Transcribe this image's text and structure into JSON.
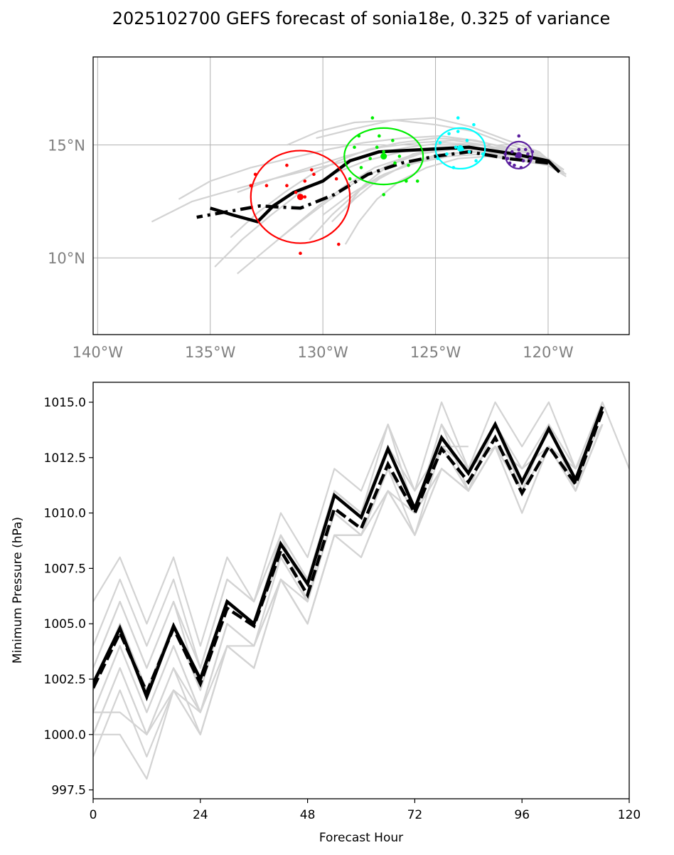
{
  "title": "2025102700 GEFS forecast of sonia18e, 0.325 of variance",
  "chart_data": [
    {
      "type": "scatter",
      "name": "track-map",
      "xlim": [
        -140.2,
        -116.4
      ],
      "ylim": [
        6.6,
        18.9
      ],
      "xticks": [
        -140,
        -135,
        -130,
        -125,
        -120
      ],
      "xtick_labels": [
        "140°W",
        "135°W",
        "130°W",
        "125°W",
        "120°W"
      ],
      "yticks": [
        10,
        15
      ],
      "ytick_labels": [
        "10°N",
        "15°N"
      ],
      "grid": true,
      "colors": {
        "member": "#d3d3d3",
        "mean": "#000000",
        "ellipse_24h": "#5b1f9e",
        "ellipse_48h": "#00ffff",
        "ellipse_72h": "#00ee00",
        "ellipse_96h": "#ff0000",
        "grid": "#b0b0b0"
      },
      "ensemble_members": [
        {
          "lon": [
            -119.3,
            -120.0,
            -121.4,
            -123.0,
            -124.6,
            -126.2,
            -127.8,
            -129.3,
            -131.0,
            -132.6,
            -134.4,
            -135.8,
            -137.6
          ],
          "lat": [
            13.9,
            14.4,
            14.6,
            15.0,
            15.1,
            14.9,
            14.6,
            14.2,
            13.8,
            13.4,
            12.9,
            12.5,
            11.6
          ]
        },
        {
          "lon": [
            -119.4,
            -120.2,
            -121.6,
            -123.2,
            -124.8,
            -126.5,
            -128.2,
            -129.8,
            -131.5,
            -133.2,
            -135.0,
            -136.4
          ],
          "lat": [
            13.8,
            14.5,
            14.8,
            15.2,
            15.4,
            15.3,
            15.1,
            14.8,
            14.4,
            14.0,
            13.4,
            12.6
          ]
        },
        {
          "lon": [
            -119.2,
            -120.1,
            -121.3,
            -122.8,
            -124.2,
            -125.8,
            -127.4,
            -129.0,
            -130.6,
            -132.2,
            -133.8
          ],
          "lat": [
            13.7,
            14.3,
            14.6,
            15.0,
            15.2,
            15.1,
            14.9,
            14.5,
            14.0,
            13.5,
            12.9
          ]
        },
        {
          "lon": [
            -119.5,
            -120.3,
            -121.7,
            -123.3,
            -125.0,
            -126.8,
            -128.6,
            -130.2,
            -131.6
          ],
          "lat": [
            13.9,
            14.6,
            15.0,
            15.6,
            15.9,
            16.1,
            16.0,
            15.6,
            15.0
          ]
        },
        {
          "lon": [
            -119.6,
            -120.4,
            -121.8,
            -123.4,
            -125.1,
            -126.9,
            -128.7,
            -130.3
          ],
          "lat": [
            14.0,
            14.7,
            15.2,
            15.8,
            16.2,
            16.1,
            15.7,
            15.3
          ]
        },
        {
          "lon": [
            -119.3,
            -120.2,
            -121.5,
            -123.0,
            -124.5,
            -126.0,
            -127.5,
            -128.8,
            -130.0
          ],
          "lat": [
            13.8,
            14.3,
            14.5,
            14.7,
            14.6,
            14.2,
            13.6,
            12.8,
            11.9
          ]
        },
        {
          "lon": [
            -119.4,
            -120.3,
            -121.6,
            -123.2,
            -124.7,
            -126.2,
            -127.7,
            -129.0,
            -130.2,
            -131.4,
            -132.6,
            -133.8
          ],
          "lat": [
            13.8,
            14.3,
            14.6,
            14.8,
            14.8,
            14.5,
            14.0,
            13.2,
            12.3,
            11.3,
            10.3,
            9.3
          ]
        },
        {
          "lon": [
            -119.5,
            -120.4,
            -121.7,
            -123.3,
            -124.9,
            -126.5,
            -128.1,
            -129.6,
            -131.0,
            -132.3,
            -133.6,
            -134.8
          ],
          "lat": [
            13.9,
            14.4,
            14.7,
            14.9,
            14.9,
            14.7,
            14.3,
            13.7,
            12.9,
            11.9,
            10.8,
            9.6
          ]
        },
        {
          "lon": [
            -119.3,
            -120.2,
            -121.4,
            -122.9,
            -124.4,
            -125.9,
            -127.3,
            -128.5,
            -129.6,
            -130.6
          ],
          "lat": [
            13.7,
            14.2,
            14.4,
            14.6,
            14.5,
            14.2,
            13.7,
            12.9,
            11.9,
            10.8
          ]
        },
        {
          "lon": [
            -119.2,
            -120.0,
            -121.2,
            -122.6,
            -124.0,
            -125.4,
            -126.6,
            -127.6,
            -128.4,
            -129.0
          ],
          "lat": [
            13.6,
            14.1,
            14.3,
            14.5,
            14.4,
            14.0,
            13.4,
            12.6,
            11.6,
            10.6
          ]
        },
        {
          "lon": [
            -119.4,
            -120.3,
            -121.6,
            -123.1,
            -124.6,
            -126.0,
            -127.2,
            -128.2,
            -129.0
          ],
          "lat": [
            13.9,
            14.5,
            14.8,
            15.0,
            14.9,
            14.6,
            14.0,
            13.2,
            12.2
          ]
        },
        {
          "lon": [
            -119.6,
            -120.5,
            -121.8,
            -123.4,
            -125.0,
            -126.6,
            -128.0,
            -129.3,
            -130.5,
            -131.7,
            -132.9,
            -134.1
          ],
          "lat": [
            14.0,
            14.6,
            14.9,
            15.2,
            15.3,
            15.1,
            14.8,
            14.3,
            13.7,
            12.9,
            12.0,
            10.9
          ]
        },
        {
          "lon": [
            -119.3,
            -120.1,
            -121.3,
            -122.8,
            -124.3,
            -125.7,
            -127.1,
            -128.5,
            -129.8,
            -131.0,
            -132.0
          ],
          "lat": [
            13.8,
            14.3,
            14.6,
            14.8,
            14.8,
            14.6,
            14.1,
            13.4,
            12.5,
            11.6,
            10.8
          ]
        },
        {
          "lon": [
            -119.5,
            -120.4,
            -121.8,
            -123.3,
            -124.8,
            -126.2,
            -127.5,
            -128.6,
            -129.6
          ],
          "lat": [
            13.9,
            14.4,
            14.6,
            14.7,
            14.6,
            14.2,
            13.5,
            12.6,
            11.6
          ]
        }
      ],
      "mean_track": {
        "lon": [
          -119.5,
          -120.0,
          -121.5,
          -123.5,
          -125.5,
          -127.5,
          -128.8,
          -130.0,
          -131.3,
          -132.2,
          -132.9,
          -134.0,
          -135.0
        ],
        "lat": [
          13.8,
          14.3,
          14.6,
          14.9,
          14.8,
          14.7,
          14.3,
          13.4,
          12.9,
          12.3,
          11.6,
          11.9,
          12.2
        ]
      },
      "mean_track_dashed": {
        "lon": [
          -120.0,
          -121.8,
          -123.5,
          -125.0,
          -126.5,
          -128.0,
          -129.5,
          -131.0,
          -132.8,
          -134.5,
          -135.6
        ],
        "lat": [
          14.2,
          14.4,
          14.7,
          14.5,
          14.2,
          13.7,
          12.8,
          12.2,
          12.3,
          12.0,
          11.8
        ]
      },
      "ellipses": [
        {
          "hour": 24,
          "center_lon": -121.3,
          "center_lat": 14.55,
          "semi_lon": 0.6,
          "semi_lat": 0.6
        },
        {
          "hour": 48,
          "center_lon": -123.9,
          "center_lat": 14.85,
          "semi_lon": 1.1,
          "semi_lat": 0.9
        },
        {
          "hour": 72,
          "center_lon": -127.3,
          "center_lat": 14.5,
          "semi_lon": 1.75,
          "semi_lat": 1.25
        },
        {
          "hour": 96,
          "center_lon": -131.0,
          "center_lat": 12.7,
          "semi_lon": 2.2,
          "semi_lat": 2.05
        }
      ],
      "member_points": [
        {
          "hour": 24,
          "points": [
            [
              -121.3,
              15.4
            ],
            [
              -121.0,
              14.8
            ],
            [
              -121.6,
              14.7
            ],
            [
              -120.9,
              14.6
            ],
            [
              -121.4,
              14.5
            ],
            [
              -121.8,
              14.4
            ],
            [
              -121.1,
              14.3
            ],
            [
              -120.8,
              14.4
            ],
            [
              -121.5,
              14.1
            ],
            [
              -121.2,
              14.0
            ],
            [
              -121.7,
              14.2
            ],
            [
              -120.7,
              14.7
            ],
            [
              -121.9,
              14.6
            ],
            [
              -121.3,
              14.8
            ]
          ]
        },
        {
          "hour": 48,
          "points": [
            [
              -124.0,
              16.2
            ],
            [
              -123.3,
              15.9
            ],
            [
              -124.4,
              15.5
            ],
            [
              -123.6,
              15.2
            ],
            [
              -124.8,
              15.1
            ],
            [
              -124.1,
              14.9
            ],
            [
              -123.5,
              14.7
            ],
            [
              -124.5,
              14.6
            ],
            [
              -123.2,
              14.3
            ],
            [
              -124.2,
              14.0
            ],
            [
              -124.9,
              14.4
            ],
            [
              -123.8,
              14.8
            ],
            [
              -122.9,
              14.6
            ],
            [
              -124.0,
              15.6
            ]
          ]
        },
        {
          "hour": 72,
          "points": [
            [
              -127.8,
              16.2
            ],
            [
              -128.4,
              15.4
            ],
            [
              -127.5,
              15.4
            ],
            [
              -126.9,
              15.2
            ],
            [
              -128.6,
              14.9
            ],
            [
              -127.3,
              14.7
            ],
            [
              -126.6,
              14.5
            ],
            [
              -127.9,
              14.4
            ],
            [
              -128.3,
              14.0
            ],
            [
              -126.8,
              14.2
            ],
            [
              -125.8,
              13.4
            ],
            [
              -126.3,
              13.4
            ],
            [
              -127.3,
              12.8
            ],
            [
              -128.8,
              13.5
            ],
            [
              -127.6,
              14.9
            ],
            [
              -126.2,
              14.1
            ]
          ]
        },
        {
          "hour": 96,
          "points": [
            [
              -131.6,
              14.1
            ],
            [
              -133.0,
              13.7
            ],
            [
              -132.5,
              13.2
            ],
            [
              -133.2,
              13.2
            ],
            [
              -131.6,
              13.2
            ],
            [
              -130.5,
              13.9
            ],
            [
              -130.4,
              13.7
            ],
            [
              -130.8,
              13.4
            ],
            [
              -131.2,
              12.9
            ],
            [
              -130.8,
              12.7
            ],
            [
              -129.4,
              13.5
            ],
            [
              -131.0,
              10.2
            ],
            [
              -129.3,
              10.6
            ]
          ]
        }
      ]
    },
    {
      "type": "line",
      "name": "min-pressure",
      "xlabel": "Forecast Hour",
      "ylabel": "Minimum Pressure (hPa)",
      "xlim": [
        0,
        120
      ],
      "ylim": [
        997.1,
        1015.9
      ],
      "xticks": [
        0,
        24,
        48,
        72,
        96,
        120
      ],
      "yticks": [
        997.5,
        1000.0,
        1002.5,
        1005.0,
        1007.5,
        1010.0,
        1012.5,
        1015.0
      ],
      "ytick_labels": [
        "997.5",
        "1000.0",
        "1002.5",
        "1005.0",
        "1007.5",
        "1010.0",
        "1012.5",
        "1015.0"
      ],
      "colors": {
        "member": "#d3d3d3",
        "mean": "#000000",
        "background": "#ffffff"
      },
      "x": [
        0,
        6,
        12,
        18,
        24,
        30,
        36,
        42,
        48,
        54,
        60,
        66,
        72,
        78,
        84,
        90,
        96,
        102,
        108,
        114,
        120
      ],
      "members": [
        [
          1006,
          1008,
          1005,
          1008,
          1004,
          1008,
          1006,
          1010,
          1008,
          1012,
          1011,
          1014,
          1011,
          1015,
          1012,
          1015,
          1013,
          1015,
          1012,
          1015,
          1012
        ],
        [
          1004,
          1007,
          1004,
          1007,
          1003,
          1007,
          1006,
          1009,
          1007,
          1011,
          1010,
          1014,
          1010,
          1014,
          1012,
          1014,
          1012,
          1014,
          1012,
          1015
        ],
        [
          1003,
          1006,
          1003,
          1006,
          1002,
          1006,
          1005,
          1009,
          1007,
          1011,
          1010,
          1013,
          1010,
          1014,
          1011,
          1014,
          1011,
          1014,
          1012,
          1015
        ],
        [
          1002,
          1005,
          1002,
          1005,
          1002,
          1006,
          1005,
          1009,
          1006,
          1011,
          1010,
          1013,
          1010,
          1013,
          1011,
          1014,
          1011,
          1014,
          1011,
          1015
        ],
        [
          1002,
          1005,
          1002,
          1005,
          1002,
          1006,
          1005,
          1008,
          1006,
          1010,
          1009,
          1012,
          1009,
          1013,
          1011,
          1013,
          1011,
          1013,
          1011,
          1014
        ],
        [
          1001,
          1004,
          1001,
          1004,
          1001,
          1005,
          1004,
          1008,
          1006,
          1010,
          1009,
          1012,
          1010,
          1013,
          1012,
          1013,
          1012,
          1013,
          1012,
          1014
        ],
        [
          1001,
          1004,
          1001,
          1004,
          1001,
          1005,
          1004,
          1007,
          1005,
          1009,
          1009,
          1012,
          1010,
          1012,
          1011,
          1013,
          1011,
          1013,
          1011,
          1014
        ],
        [
          1000,
          1003,
          1000,
          1003,
          1001,
          1005,
          1004,
          1007,
          1005,
          1009,
          1008,
          1011,
          1009,
          1012,
          1011,
          1013,
          1010,
          1013,
          1011,
          1014
        ],
        [
          1000,
          1003,
          1000,
          1003,
          1000,
          1004,
          1003,
          1007,
          1005,
          1009,
          1008,
          1011,
          1009,
          1012,
          1011,
          1013,
          1010,
          1013,
          1011,
          1014
        ],
        [
          1001,
          1001,
          1000,
          1002,
          1001,
          1004,
          1004,
          1007,
          1005,
          1009,
          1009,
          1011,
          1010,
          1012,
          1011,
          1013,
          1011,
          1013,
          1011,
          1014
        ],
        [
          999,
          1002,
          999,
          1002,
          1000,
          1004,
          1003,
          1007,
          1005,
          1009,
          1009,
          1011,
          1009,
          1012,
          1011,
          1013,
          1011,
          1013,
          1011,
          1014
        ],
        [
          1000,
          1000,
          998,
          1002,
          1000,
          1004,
          1003,
          1007,
          1006,
          1010,
          1009,
          1012,
          1010,
          1013
        ],
        [
          1003,
          1006,
          1003,
          1006,
          1003,
          1007,
          1006,
          1009,
          1007,
          1011,
          1010,
          1013,
          1011,
          1013,
          1013
        ]
      ],
      "mean_solid": [
        1002.3,
        1004.8,
        1001.7,
        1004.9,
        1002.5,
        1006.0,
        1005.0,
        1008.6,
        1006.8,
        1010.8,
        1009.8,
        1012.9,
        1010.2,
        1013.4,
        1011.8,
        1014.0,
        1011.4,
        1013.8,
        1011.5,
        1014.8
      ],
      "mean_dashed": [
        1002.1,
        1004.6,
        1001.9,
        1004.8,
        1002.3,
        1005.7,
        1004.9,
        1008.3,
        1006.3,
        1010.2,
        1009.3,
        1012.2,
        1010.0,
        1012.9,
        1011.4,
        1013.4,
        1010.9,
        1013.0,
        1011.3,
        1014.6
      ]
    }
  ]
}
